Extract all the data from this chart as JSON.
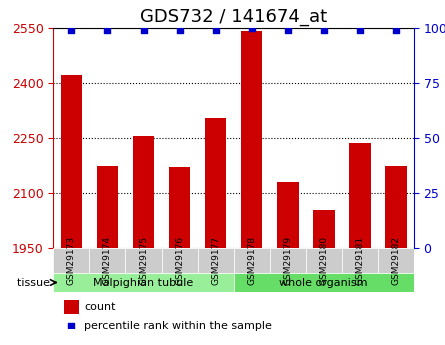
{
  "title": "GDS732 / 141674_at",
  "categories": [
    "GSM29173",
    "GSM29174",
    "GSM29175",
    "GSM29176",
    "GSM29177",
    "GSM29178",
    "GSM29179",
    "GSM29180",
    "GSM29181",
    "GSM29182"
  ],
  "counts": [
    2420,
    2175,
    2255,
    2170,
    2305,
    2540,
    2130,
    2055,
    2235,
    2175
  ],
  "percentiles": [
    99,
    99,
    99,
    99,
    99,
    100,
    99,
    99,
    99,
    99
  ],
  "ylim_left": [
    1950,
    2550
  ],
  "ylim_right": [
    0,
    100
  ],
  "yticks_left": [
    1950,
    2100,
    2250,
    2400,
    2550
  ],
  "yticks_right": [
    0,
    25,
    50,
    75,
    100
  ],
  "bar_color": "#cc0000",
  "dot_color": "#0000cc",
  "bar_width": 0.6,
  "tissue_groups": [
    {
      "label": "Malpighian tubule",
      "start": 0,
      "end": 5,
      "color": "#99ee99"
    },
    {
      "label": "whole organism",
      "start": 5,
      "end": 10,
      "color": "#66dd66"
    }
  ],
  "tissue_label": "tissue",
  "legend_count_label": "count",
  "legend_pct_label": "percentile rank within the sample",
  "background_color": "#ffffff",
  "tick_label_color_left": "#cc0000",
  "tick_label_color_right": "#0000cc",
  "title_fontsize": 13,
  "axis_fontsize": 9,
  "tick_fontsize": 9
}
